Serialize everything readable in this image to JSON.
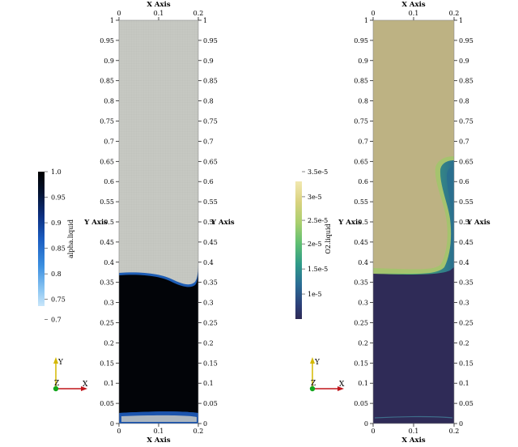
{
  "views": [
    {
      "id": "alpha",
      "axis_title_x": "X Axis",
      "axis_title_y": "Y Axis",
      "x_ticks": [
        "0",
        "0.1",
        "0.2"
      ],
      "y_ticks": [
        "0",
        "0.05",
        "0.1",
        "0.15",
        "0.2",
        "0.25",
        "0.3",
        "0.35",
        "0.4",
        "0.45",
        "0.5",
        "0.55",
        "0.6",
        "0.65",
        "0.7",
        "0.75",
        "0.8",
        "0.85",
        "0.9",
        "0.95",
        "1"
      ],
      "colorbar": {
        "title": "alpha.liquid",
        "tick_labels": [
          "1.0",
          "0.95",
          "0.9",
          "0.85",
          "0.8",
          "0.75",
          "0.7"
        ],
        "range": [
          0.7,
          1.0
        ]
      }
    },
    {
      "id": "o2",
      "axis_title_x": "X Axis",
      "axis_title_y": "Y Axis",
      "x_ticks": [
        "0",
        "0.1",
        "0.2"
      ],
      "y_ticks": [
        "0",
        "0.05",
        "0.1",
        "0.15",
        "0.2",
        "0.25",
        "0.3",
        "0.35",
        "0.4",
        "0.45",
        "0.5",
        "0.55",
        "0.6",
        "0.65",
        "0.7",
        "0.75",
        "0.8",
        "0.85",
        "0.9",
        "0.95",
        "1"
      ],
      "colorbar": {
        "title": "O2.liquid",
        "tick_labels": [
          "3.5e-5",
          "3e-5",
          "2.5e-5",
          "2e-5",
          "1.5e-5",
          "1e-5"
        ],
        "range": [
          0.0,
          3.6e-05
        ]
      }
    }
  ],
  "orientation_axes": {
    "x": "X",
    "y": "Y",
    "z": "Z"
  },
  "colors": {
    "gas_phase_alpha": "#c6c8c2",
    "liquid_phase_alpha": "#020408",
    "interface_alpha": "#1e5db5",
    "gas_phase_o2": "#bdb283",
    "liquid_phase_o2": "#2f2b57",
    "interface_o2": "#46b86b"
  }
}
